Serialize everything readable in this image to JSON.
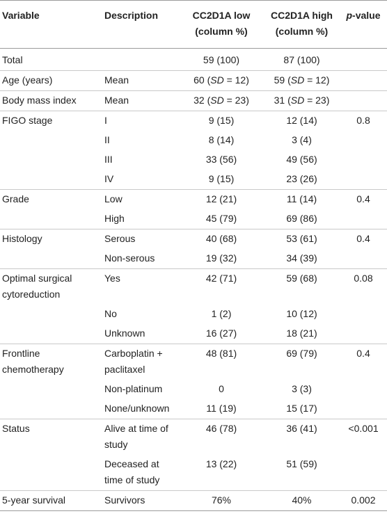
{
  "header": {
    "variable": "Variable",
    "description": "Description",
    "low": "CC2D1A low (column %)",
    "high": "CC2D1A high (column %)",
    "p_prefix": "p",
    "p_suffix": "-value"
  },
  "rows": [
    {
      "variable": "Total",
      "description": "",
      "low": "59 (100)",
      "high": "87 (100)",
      "p": ""
    },
    {
      "variable": "Age (years)",
      "description": "Mean",
      "low": "60 (SD = 12)",
      "high": "59 (SD = 12)",
      "p": ""
    },
    {
      "variable": "Body mass index",
      "description": "Mean",
      "low": "32 (SD = 23)",
      "high": "31 (SD = 23)",
      "p": ""
    },
    {
      "variable": "FIGO stage",
      "description": "I",
      "low": "9 (15)",
      "high": "12 (14)",
      "p": "0.8"
    },
    {
      "variable": "",
      "description": "II",
      "low": "8 (14)",
      "high": "3 (4)",
      "p": ""
    },
    {
      "variable": "",
      "description": "III",
      "low": "33 (56)",
      "high": "49 (56)",
      "p": ""
    },
    {
      "variable": "",
      "description": "IV",
      "low": "9 (15)",
      "high": "23 (26)",
      "p": ""
    },
    {
      "variable": "Grade",
      "description": "Low",
      "low": "12 (21)",
      "high": "11 (14)",
      "p": "0.4"
    },
    {
      "variable": "",
      "description": "High",
      "low": "45 (79)",
      "high": "69 (86)",
      "p": ""
    },
    {
      "variable": "Histology",
      "description": "Serous",
      "low": "40 (68)",
      "high": "53 (61)",
      "p": "0.4"
    },
    {
      "variable": "",
      "description": "Non-serous",
      "low": "19 (32)",
      "high": "34 (39)",
      "p": ""
    },
    {
      "variable": "Optimal surgical cytoreduction",
      "description": "Yes",
      "low": "42 (71)",
      "high": "59 (68)",
      "p": "0.08"
    },
    {
      "variable": "",
      "description": "No",
      "low": "1 (2)",
      "high": "10 (12)",
      "p": ""
    },
    {
      "variable": "",
      "description": "Unknown",
      "low": "16 (27)",
      "high": "18 (21)",
      "p": ""
    },
    {
      "variable": "Frontline chemotherapy",
      "description": "Carboplatin + paclitaxel",
      "low": "48 (81)",
      "high": "69 (79)",
      "p": "0.4"
    },
    {
      "variable": "",
      "description": "Non-platinum",
      "low": "0",
      "high": "3 (3)",
      "p": ""
    },
    {
      "variable": "",
      "description": "None/unknown",
      "low": "11 (19)",
      "high": "15 (17)",
      "p": ""
    },
    {
      "variable": "Status",
      "description": "Alive at time of study",
      "low": "46 (78)",
      "high": "36 (41)",
      "p": "<0.001"
    },
    {
      "variable": "",
      "description": "Deceased at time of study",
      "low": "13 (22)",
      "high": "51 (59)",
      "p": ""
    },
    {
      "variable": "5-year survival",
      "description": "Survivors",
      "low": "76%",
      "high": "40%",
      "p": "0.002"
    }
  ]
}
